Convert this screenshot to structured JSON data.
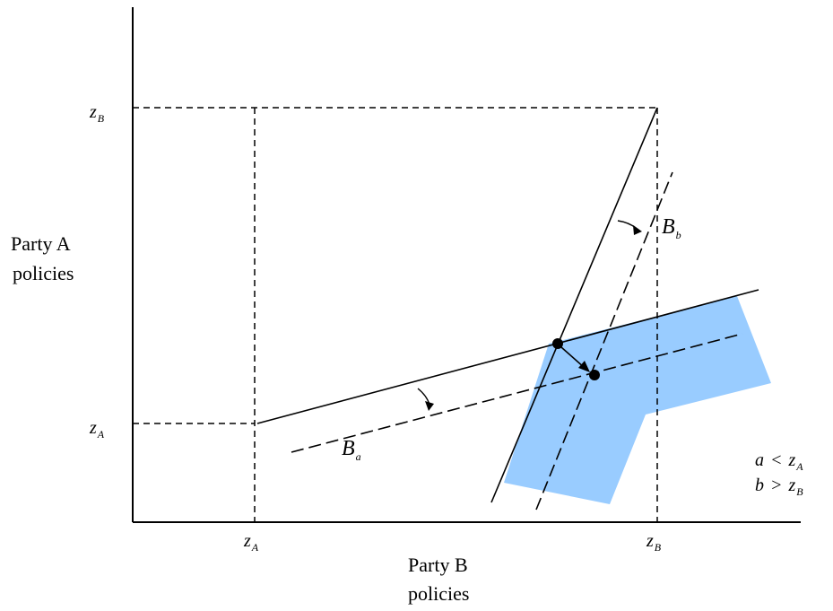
{
  "y_axis_label": {
    "line1": "Party A",
    "line2": "policies"
  },
  "x_axis_label": {
    "line1": "Party B",
    "line2": "policies"
  },
  "y_ticks": {
    "zB": {
      "main": "z",
      "sub": "B"
    },
    "zA": {
      "main": "z",
      "sub": "A"
    }
  },
  "x_ticks": {
    "zA": {
      "main": "z",
      "sub": "A"
    },
    "zB": {
      "main": "z",
      "sub": "B"
    }
  },
  "curve_labels": {
    "Bb": {
      "main": "B",
      "sub": "b"
    },
    "Ba": {
      "main": "B",
      "sub": "a"
    }
  },
  "conditions": {
    "line1": {
      "lhs": "a",
      "op": "<",
      "rhs": "z",
      "sub": "A"
    },
    "line2": {
      "lhs": "b",
      "op": ">",
      "rhs": "z",
      "sub": "B"
    }
  },
  "colors": {
    "region_fill": "#99ccff",
    "ink": "#000000"
  }
}
